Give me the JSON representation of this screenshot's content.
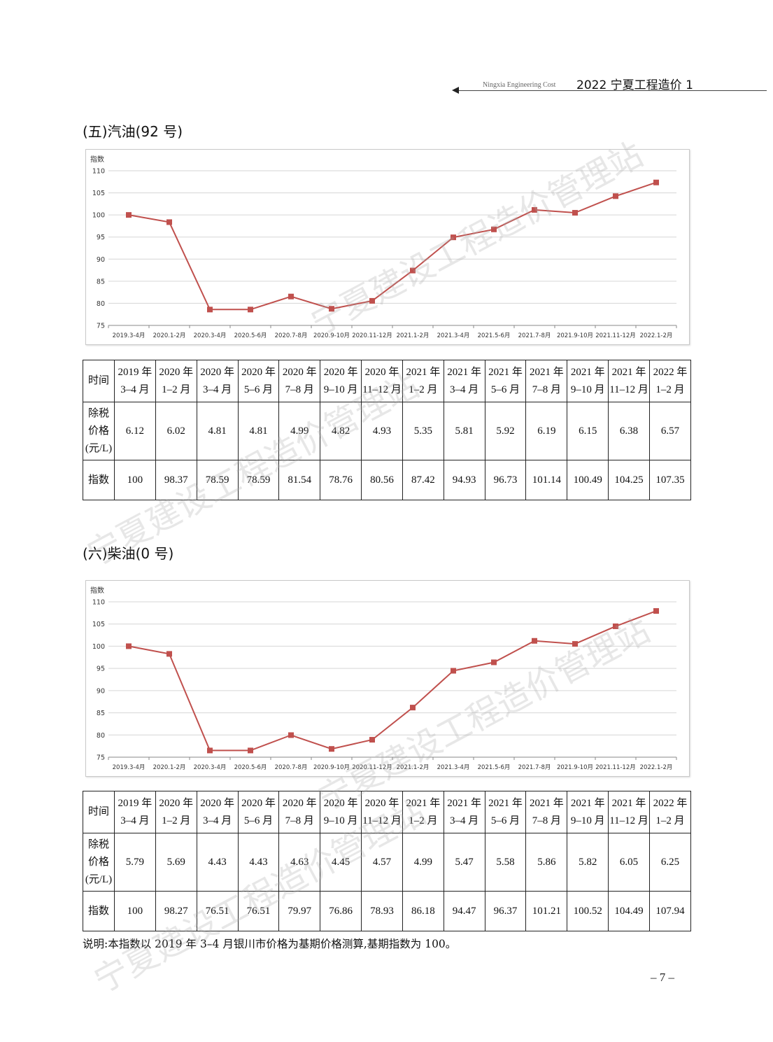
{
  "header": {
    "english": "Ningxia Engineering Cost",
    "chinese": "2022 宁夏工程造价 1"
  },
  "sections": [
    {
      "title": "(五)汽油(92 号)",
      "table": {
        "time_label": "时间",
        "price_label": [
          "除税",
          "价格",
          "(元/L)"
        ],
        "index_label": "指数",
        "periods": [
          [
            "2019 年",
            "3–4 月"
          ],
          [
            "2020 年",
            "1–2 月"
          ],
          [
            "2020 年",
            "3–4 月"
          ],
          [
            "2020 年",
            "5–6 月"
          ],
          [
            "2020 年",
            "7–8 月"
          ],
          [
            "2020 年",
            "9–10 月"
          ],
          [
            "2020 年",
            "11–12 月"
          ],
          [
            "2021 年",
            "1–2 月"
          ],
          [
            "2021 年",
            "3–4 月"
          ],
          [
            "2021 年",
            "5–6 月"
          ],
          [
            "2021 年",
            "7–8 月"
          ],
          [
            "2021 年",
            "9–10 月"
          ],
          [
            "2021 年",
            "11–12 月"
          ],
          [
            "2022 年",
            "1–2 月"
          ]
        ],
        "prices": [
          "6.12",
          "6.02",
          "4.81",
          "4.81",
          "4.99",
          "4.82",
          "4.93",
          "5.35",
          "5.81",
          "5.92",
          "6.19",
          "6.15",
          "6.38",
          "6.57"
        ],
        "indices": [
          "100",
          "98.37",
          "78.59",
          "78.59",
          "81.54",
          "78.76",
          "80.56",
          "87.42",
          "94.93",
          "96.73",
          "101.14",
          "100.49",
          "104.25",
          "107.35"
        ]
      }
    },
    {
      "title": "(六)柴油(0 号)",
      "table": {
        "time_label": "时间",
        "price_label": [
          "除税",
          "价格",
          "(元/L)"
        ],
        "index_label": "指数",
        "periods": [
          [
            "2019 年",
            "3–4 月"
          ],
          [
            "2020 年",
            "1–2 月"
          ],
          [
            "2020 年",
            "3–4 月"
          ],
          [
            "2020 年",
            "5–6 月"
          ],
          [
            "2020 年",
            "7–8 月"
          ],
          [
            "2020 年",
            "9–10 月"
          ],
          [
            "2020 年",
            "11–12 月"
          ],
          [
            "2021 年",
            "1–2 月"
          ],
          [
            "2021 年",
            "3–4 月"
          ],
          [
            "2021 年",
            "5–6 月"
          ],
          [
            "2021 年",
            "7–8 月"
          ],
          [
            "2021 年",
            "9–10 月"
          ],
          [
            "2021 年",
            "11–12 月"
          ],
          [
            "2022 年",
            "1–2 月"
          ]
        ],
        "prices": [
          "5.79",
          "5.69",
          "4.43",
          "4.43",
          "4.63",
          "4.45",
          "4.57",
          "4.99",
          "5.47",
          "5.58",
          "5.86",
          "5.82",
          "6.05",
          "6.25"
        ],
        "indices": [
          "100",
          "98.27",
          "76.51",
          "76.51",
          "79.97",
          "76.86",
          "78.93",
          "86.18",
          "94.47",
          "96.37",
          "101.21",
          "100.52",
          "104.49",
          "107.94"
        ]
      }
    }
  ],
  "chart_data": [
    {
      "type": "line",
      "ylabel": "指数",
      "ylim": [
        75,
        110
      ],
      "yticks": [
        75,
        80,
        85,
        90,
        95,
        100,
        105,
        110
      ],
      "grid": true,
      "line_color": "#c0504d",
      "categories": [
        "2019.3-4月",
        "2020.1-2月",
        "2020.3-4月",
        "2020.5-6月",
        "2020.7-8月",
        "2020.9-10月",
        "2020.11-12月",
        "2021.1-2月",
        "2021.3-4月",
        "2021.5-6月",
        "2021.7-8月",
        "2021.9-10月",
        "2021.11-12月",
        "2022.1-2月"
      ],
      "values": [
        100,
        98.37,
        78.59,
        78.59,
        81.54,
        78.76,
        80.56,
        87.42,
        94.93,
        96.73,
        101.14,
        100.49,
        104.25,
        107.35
      ]
    },
    {
      "type": "line",
      "ylabel": "指数",
      "ylim": [
        75,
        110
      ],
      "yticks": [
        75,
        80,
        85,
        90,
        95,
        100,
        105,
        110
      ],
      "grid": true,
      "line_color": "#c0504d",
      "categories": [
        "2019.3-4月",
        "2020.1-2月",
        "2020.3-4月",
        "2020.5-6月",
        "2020.7-8月",
        "2020.9-10月",
        "2020.11-12月",
        "2021.1-2月",
        "2021.3-4月",
        "2021.5-6月",
        "2021.7-8月",
        "2021.9-10月",
        "2021.11-12月",
        "2022.1-2月"
      ],
      "values": [
        100,
        98.27,
        76.51,
        76.51,
        79.97,
        76.86,
        78.93,
        86.18,
        94.47,
        96.37,
        101.21,
        100.52,
        104.49,
        107.94
      ]
    }
  ],
  "note": "说明:本指数以 2019 年 3–4 月银川市价格为基期价格测算,基期指数为 100。",
  "page_number": "– 7 –",
  "watermark": "宁夏建设工程造价管理站"
}
